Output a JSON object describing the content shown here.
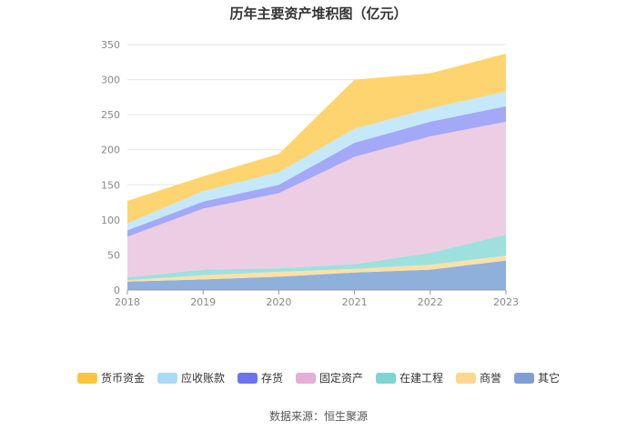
{
  "chart_data": {
    "type": "area",
    "stacked": true,
    "title": "历年主要资产堆积图（亿元）",
    "xlabel": "",
    "ylabel": "",
    "ylim": [
      0,
      350
    ],
    "yticks": [
      0,
      50,
      100,
      150,
      200,
      250,
      300,
      350
    ],
    "categories": [
      "2018",
      "2019",
      "2020",
      "2021",
      "2022",
      "2023"
    ],
    "series": [
      {
        "name": "其它",
        "color": "#8fb0db",
        "values": [
          12,
          15,
          19,
          25,
          29,
          42
        ]
      },
      {
        "name": "商誉",
        "color": "#fde0a6",
        "values": [
          2,
          6,
          7,
          5,
          7,
          7
        ]
      },
      {
        "name": "在建工程",
        "color": "#9ee0de",
        "values": [
          4,
          8,
          5,
          7,
          17,
          30
        ]
      },
      {
        "name": "固定资产",
        "color": "#edcde4",
        "values": [
          58,
          87,
          107,
          153,
          166,
          161
        ]
      },
      {
        "name": "存货",
        "color": "#a3a8f7",
        "values": [
          9,
          10,
          12,
          20,
          21,
          22
        ]
      },
      {
        "name": "应收账款",
        "color": "#c5e8fa",
        "values": [
          10,
          15,
          18,
          20,
          19,
          21
        ]
      },
      {
        "name": "货币资金",
        "color": "#fed470",
        "values": [
          32,
          21,
          26,
          70,
          50,
          54
        ]
      }
    ],
    "legend": [
      "货币资金",
      "应收账款",
      "存货",
      "固定资产",
      "在建工程",
      "商誉",
      "其它"
    ],
    "legend_colors": {
      "货币资金": "#f9c53d",
      "应收账款": "#a9dbf7",
      "存货": "#6d73ee",
      "固定资产": "#e4afd7",
      "在建工程": "#7ed4d3",
      "商誉": "#fcd88f",
      "其它": "#7f9fd4"
    },
    "legend_position": "bottom",
    "grid": true
  },
  "footer": {
    "source": "数据来源：恒生聚源"
  }
}
